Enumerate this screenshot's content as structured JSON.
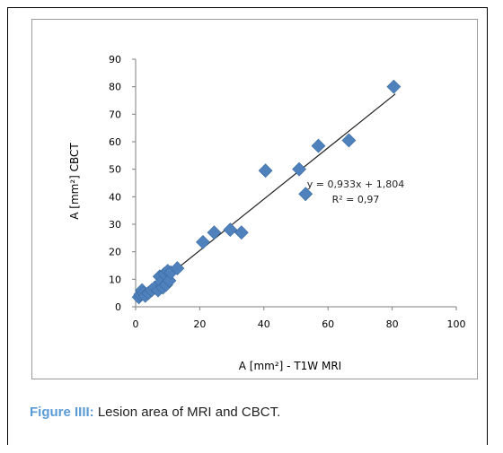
{
  "chart_data": {
    "type": "scatter",
    "title": "",
    "xlabel": "A [mm²] - T1W MRI",
    "ylabel": "A [mm²] CBCT",
    "xlim": [
      0,
      100
    ],
    "ylim": [
      0,
      90
    ],
    "x_ticks": [
      "0",
      "20",
      "40",
      "60",
      "80",
      "100"
    ],
    "y_ticks": [
      "0",
      "10",
      "20",
      "30",
      "40",
      "50",
      "60",
      "70",
      "80",
      "90"
    ],
    "grid": false,
    "legend": "none",
    "marker": "diamond",
    "marker_color": "#4f81bd",
    "points": [
      {
        "x": 1,
        "y": 3.5
      },
      {
        "x": 1.5,
        "y": 4.5
      },
      {
        "x": 2,
        "y": 6
      },
      {
        "x": 2.5,
        "y": 5
      },
      {
        "x": 3,
        "y": 4
      },
      {
        "x": 4,
        "y": 5
      },
      {
        "x": 5,
        "y": 6
      },
      {
        "x": 6,
        "y": 7
      },
      {
        "x": 7,
        "y": 6
      },
      {
        "x": 7.5,
        "y": 11
      },
      {
        "x": 8,
        "y": 9
      },
      {
        "x": 8.5,
        "y": 7
      },
      {
        "x": 9,
        "y": 12
      },
      {
        "x": 9.5,
        "y": 8
      },
      {
        "x": 10,
        "y": 13
      },
      {
        "x": 10.5,
        "y": 9.5
      },
      {
        "x": 11,
        "y": 12.5
      },
      {
        "x": 13,
        "y": 14
      },
      {
        "x": 21,
        "y": 23.5
      },
      {
        "x": 24.5,
        "y": 27
      },
      {
        "x": 29.5,
        "y": 28
      },
      {
        "x": 33,
        "y": 27
      },
      {
        "x": 40.5,
        "y": 49.5
      },
      {
        "x": 51,
        "y": 50
      },
      {
        "x": 53,
        "y": 41
      },
      {
        "x": 57,
        "y": 58.5
      },
      {
        "x": 66.5,
        "y": 60.5
      },
      {
        "x": 80.5,
        "y": 80
      }
    ],
    "trendline": {
      "slope": 0.933,
      "intercept": 1.804,
      "x_range": [
        1,
        81
      ],
      "color": "#222222"
    },
    "annotations": {
      "equation": "y = 0,933x + 1,804",
      "r2": "R² = 0,97"
    }
  },
  "caption": {
    "label": "Figure IIII:",
    "text": " Lesion area of MRI and CBCT."
  }
}
